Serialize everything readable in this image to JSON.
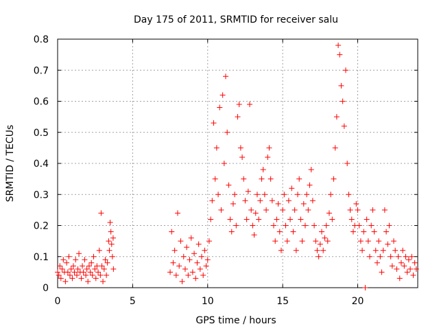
{
  "chart_data": {
    "type": "scatter",
    "title": "Day 175 of 2011, SRMTID for receiver salu",
    "xlabel": "GPS time / hours",
    "ylabel": "SRMTID / TECUs",
    "xlim": [
      0,
      24
    ],
    "ylim": [
      0,
      0.8
    ],
    "xticks": [
      0,
      5,
      10,
      15,
      20
    ],
    "yticks": [
      0,
      0.1,
      0.2,
      0.3,
      0.4,
      0.5,
      0.6,
      0.7,
      0.8
    ],
    "xtick_labels": [
      "0",
      "5",
      "10",
      "15",
      "20"
    ],
    "ytick_labels": [
      "0",
      "0.1",
      "0.2",
      "0.3",
      "0.4",
      "0.5",
      "0.6",
      "0.7",
      "0.8"
    ],
    "grid": true,
    "marker": "+",
    "color": "#ff0000",
    "series": [
      {
        "name": "SRMTID",
        "points": [
          [
            0.0,
            0.05
          ],
          [
            0.08,
            0.04
          ],
          [
            0.15,
            0.07
          ],
          [
            0.22,
            0.03
          ],
          [
            0.3,
            0.06
          ],
          [
            0.38,
            0.09
          ],
          [
            0.45,
            0.05
          ],
          [
            0.52,
            0.02
          ],
          [
            0.6,
            0.08
          ],
          [
            0.68,
            0.05
          ],
          [
            0.75,
            0.1
          ],
          [
            0.82,
            0.04
          ],
          [
            0.9,
            0.06
          ],
          [
            0.98,
            0.03
          ],
          [
            1.05,
            0.07
          ],
          [
            1.12,
            0.05
          ],
          [
            1.2,
            0.09
          ],
          [
            1.28,
            0.04
          ],
          [
            1.35,
            0.06
          ],
          [
            1.42,
            0.11
          ],
          [
            1.5,
            0.05
          ],
          [
            1.58,
            0.03
          ],
          [
            1.65,
            0.07
          ],
          [
            1.72,
            0.05
          ],
          [
            1.8,
            0.09
          ],
          [
            1.88,
            0.04
          ],
          [
            1.95,
            0.06
          ],
          [
            2.02,
            0.02
          ],
          [
            2.1,
            0.07
          ],
          [
            2.18,
            0.05
          ],
          [
            2.25,
            0.08
          ],
          [
            2.32,
            0.04
          ],
          [
            2.4,
            0.1
          ],
          [
            2.48,
            0.06
          ],
          [
            2.55,
            0.03
          ],
          [
            2.62,
            0.07
          ],
          [
            2.7,
            0.05
          ],
          [
            2.78,
            0.12
          ],
          [
            2.85,
            0.04
          ],
          [
            2.9,
            0.24
          ],
          [
            2.95,
            0.07
          ],
          [
            3.02,
            0.02
          ],
          [
            3.1,
            0.06
          ],
          [
            3.18,
            0.09
          ],
          [
            3.25,
            0.04
          ],
          [
            3.32,
            0.08
          ],
          [
            3.4,
            0.15
          ],
          [
            3.45,
            0.12
          ],
          [
            3.5,
            0.21
          ],
          [
            3.55,
            0.18
          ],
          [
            3.6,
            0.14
          ],
          [
            3.65,
            0.1
          ],
          [
            3.7,
            0.16
          ],
          [
            3.72,
            0.06
          ],
          [
            7.5,
            0.05
          ],
          [
            7.6,
            0.18
          ],
          [
            7.7,
            0.08
          ],
          [
            7.8,
            0.12
          ],
          [
            7.9,
            0.04
          ],
          [
            8.0,
            0.24
          ],
          [
            8.1,
            0.07
          ],
          [
            8.2,
            0.15
          ],
          [
            8.3,
            0.02
          ],
          [
            8.4,
            0.1
          ],
          [
            8.5,
            0.06
          ],
          [
            8.6,
            0.13
          ],
          [
            8.7,
            0.04
          ],
          [
            8.8,
            0.09
          ],
          [
            8.9,
            0.16
          ],
          [
            9.0,
            0.05
          ],
          [
            9.1,
            0.11
          ],
          [
            9.2,
            0.03
          ],
          [
            9.3,
            0.08
          ],
          [
            9.4,
            0.14
          ],
          [
            9.5,
            0.06
          ],
          [
            9.6,
            0.1
          ],
          [
            9.7,
            0.04
          ],
          [
            9.8,
            0.12
          ],
          [
            9.9,
            0.07
          ],
          [
            10.0,
            0.09
          ],
          [
            10.1,
            0.15
          ],
          [
            10.2,
            0.22
          ],
          [
            10.3,
            0.28
          ],
          [
            10.4,
            0.53
          ],
          [
            10.5,
            0.35
          ],
          [
            10.6,
            0.45
          ],
          [
            10.7,
            0.3
          ],
          [
            10.8,
            0.58
          ],
          [
            10.9,
            0.25
          ],
          [
            11.0,
            0.62
          ],
          [
            11.1,
            0.4
          ],
          [
            11.2,
            0.68
          ],
          [
            11.3,
            0.5
          ],
          [
            11.4,
            0.33
          ],
          [
            11.5,
            0.22
          ],
          [
            11.6,
            0.18
          ],
          [
            11.7,
            0.27
          ],
          [
            11.8,
            0.3
          ],
          [
            11.9,
            0.2
          ],
          [
            12.0,
            0.55
          ],
          [
            12.1,
            0.59
          ],
          [
            12.2,
            0.45
          ],
          [
            12.3,
            0.42
          ],
          [
            12.4,
            0.35
          ],
          [
            12.5,
            0.28
          ],
          [
            12.6,
            0.22
          ],
          [
            12.7,
            0.31
          ],
          [
            12.8,
            0.59
          ],
          [
            12.9,
            0.25
          ],
          [
            13.0,
            0.2
          ],
          [
            13.1,
            0.17
          ],
          [
            13.2,
            0.24
          ],
          [
            13.3,
            0.3
          ],
          [
            13.4,
            0.22
          ],
          [
            13.5,
            0.28
          ],
          [
            13.6,
            0.35
          ],
          [
            13.7,
            0.38
          ],
          [
            13.8,
            0.3
          ],
          [
            13.9,
            0.25
          ],
          [
            14.0,
            0.42
          ],
          [
            14.1,
            0.45
          ],
          [
            14.2,
            0.35
          ],
          [
            14.3,
            0.28
          ],
          [
            14.4,
            0.2
          ],
          [
            14.5,
            0.15
          ],
          [
            14.6,
            0.22
          ],
          [
            14.7,
            0.27
          ],
          [
            14.8,
            0.18
          ],
          [
            14.9,
            0.12
          ],
          [
            15.0,
            0.25
          ],
          [
            15.1,
            0.3
          ],
          [
            15.2,
            0.2
          ],
          [
            15.3,
            0.15
          ],
          [
            15.4,
            0.28
          ],
          [
            15.5,
            0.22
          ],
          [
            15.6,
            0.32
          ],
          [
            15.7,
            0.18
          ],
          [
            15.8,
            0.25
          ],
          [
            15.9,
            0.12
          ],
          [
            16.0,
            0.3
          ],
          [
            16.1,
            0.35
          ],
          [
            16.2,
            0.22
          ],
          [
            16.3,
            0.15
          ],
          [
            16.4,
            0.27
          ],
          [
            16.5,
            0.2
          ],
          [
            16.6,
            0.3
          ],
          [
            16.7,
            0.25
          ],
          [
            16.8,
            0.33
          ],
          [
            16.9,
            0.38
          ],
          [
            17.0,
            0.28
          ],
          [
            17.1,
            0.2
          ],
          [
            17.2,
            0.15
          ],
          [
            17.3,
            0.12
          ],
          [
            17.4,
            0.1
          ],
          [
            17.5,
            0.14
          ],
          [
            17.6,
            0.18
          ],
          [
            17.7,
            0.12
          ],
          [
            17.8,
            0.16
          ],
          [
            17.9,
            0.2
          ],
          [
            18.0,
            0.15
          ],
          [
            18.1,
            0.24
          ],
          [
            18.2,
            0.3
          ],
          [
            18.3,
            0.22
          ],
          [
            18.4,
            0.35
          ],
          [
            18.5,
            0.45
          ],
          [
            18.6,
            0.55
          ],
          [
            18.7,
            0.78
          ],
          [
            18.8,
            0.75
          ],
          [
            18.9,
            0.65
          ],
          [
            19.0,
            0.6
          ],
          [
            19.1,
            0.52
          ],
          [
            19.2,
            0.7
          ],
          [
            19.3,
            0.4
          ],
          [
            19.4,
            0.3
          ],
          [
            19.5,
            0.25
          ],
          [
            19.6,
            0.22
          ],
          [
            19.7,
            0.18
          ],
          [
            19.8,
            0.2
          ],
          [
            19.9,
            0.27
          ],
          [
            20.0,
            0.25
          ],
          [
            20.1,
            0.2
          ],
          [
            20.2,
            0.15
          ],
          [
            20.3,
            0.12
          ],
          [
            20.4,
            0.18
          ],
          [
            20.5,
            0.0
          ],
          [
            20.6,
            0.22
          ],
          [
            20.7,
            0.15
          ],
          [
            20.8,
            0.1
          ],
          [
            20.9,
            0.2
          ],
          [
            21.0,
            0.25
          ],
          [
            21.1,
            0.18
          ],
          [
            21.2,
            0.12
          ],
          [
            21.3,
            0.08
          ],
          [
            21.4,
            0.15
          ],
          [
            21.5,
            0.1
          ],
          [
            21.6,
            0.05
          ],
          [
            21.7,
            0.12
          ],
          [
            21.8,
            0.25
          ],
          [
            21.9,
            0.18
          ],
          [
            22.0,
            0.14
          ],
          [
            22.1,
            0.2
          ],
          [
            22.2,
            0.1
          ],
          [
            22.3,
            0.07
          ],
          [
            22.4,
            0.15
          ],
          [
            22.5,
            0.12
          ],
          [
            22.6,
            0.06
          ],
          [
            22.7,
            0.1
          ],
          [
            22.8,
            0.03
          ],
          [
            22.9,
            0.08
          ],
          [
            23.0,
            0.12
          ],
          [
            23.1,
            0.07
          ],
          [
            23.2,
            0.1
          ],
          [
            23.3,
            0.05
          ],
          [
            23.4,
            0.09
          ],
          [
            23.5,
            0.06
          ],
          [
            23.6,
            0.1
          ],
          [
            23.7,
            0.04
          ],
          [
            23.8,
            0.08
          ],
          [
            23.9,
            0.06
          ]
        ]
      }
    ]
  }
}
